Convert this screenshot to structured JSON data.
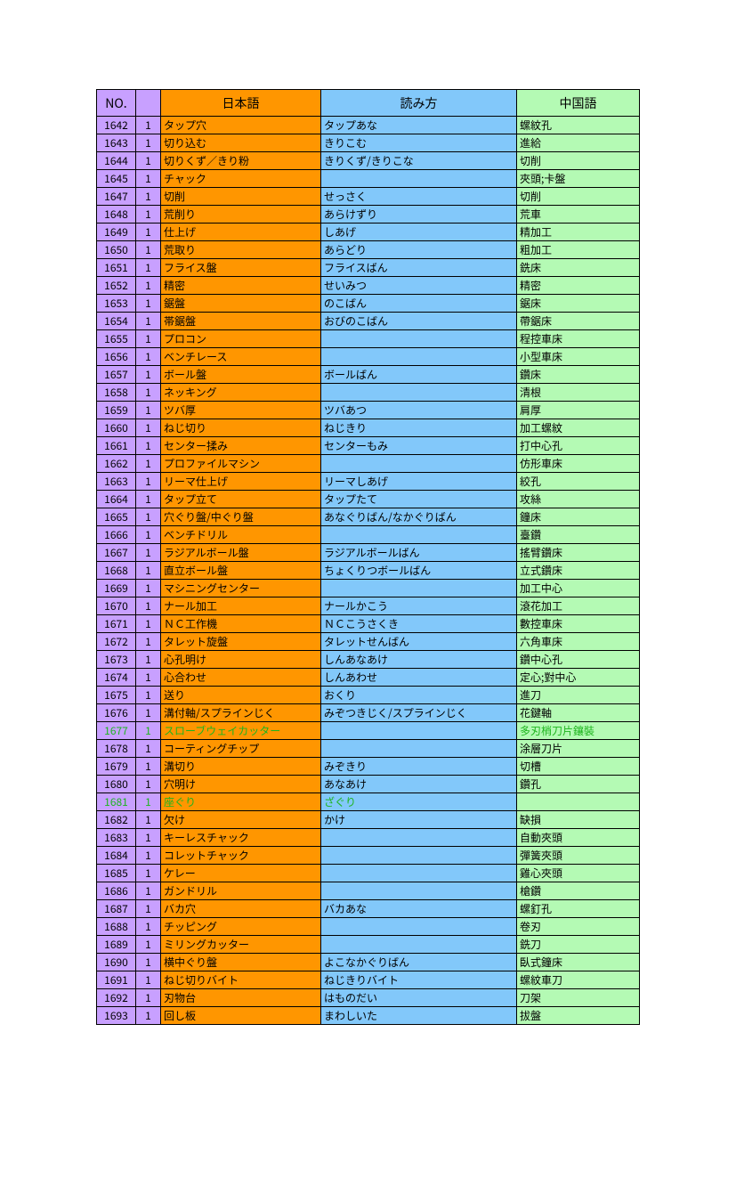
{
  "headers": {
    "no": "NO.",
    "blank": "",
    "jp": "日本語",
    "read": "読み方",
    "cn": "中国語"
  },
  "colors": {
    "purple": "#c8a0ff",
    "orange": "#ff9600",
    "blue": "#82c8fa",
    "green": "#b4fab4",
    "row_text_green": "#1eb41e",
    "border": "#000000",
    "bg": "#ffffff"
  },
  "rows": [
    {
      "no": "1642",
      "b": "1",
      "jp": "タップ穴",
      "read": "タップあな",
      "cn": "螺紋孔"
    },
    {
      "no": "1643",
      "b": "1",
      "jp": "切り込む",
      "read": "きりこむ",
      "cn": "進給"
    },
    {
      "no": "1644",
      "b": "1",
      "jp": "切りくず／きり粉",
      "read": "きりくず/きりこな",
      "cn": "切削"
    },
    {
      "no": "1645",
      "b": "1",
      "jp": "チャック",
      "read": "",
      "cn": "夾頭;卡盤"
    },
    {
      "no": "1647",
      "b": "1",
      "jp": "切削",
      "read": "せっさく",
      "cn": "切削"
    },
    {
      "no": "1648",
      "b": "1",
      "jp": "荒削り",
      "read": "あらけずり",
      "cn": "荒車"
    },
    {
      "no": "1649",
      "b": "1",
      "jp": "仕上げ",
      "read": "しあげ",
      "cn": "精加工"
    },
    {
      "no": "1650",
      "b": "1",
      "jp": "荒取り",
      "read": "あらどり",
      "cn": "粗加工"
    },
    {
      "no": "1651",
      "b": "1",
      "jp": "フライス盤",
      "read": "フライスばん",
      "cn": "銑床"
    },
    {
      "no": "1652",
      "b": "1",
      "jp": "精密",
      "read": "せいみつ",
      "cn": "精密"
    },
    {
      "no": "1653",
      "b": "1",
      "jp": "鋸盤",
      "read": "のこばん",
      "cn": "鋸床"
    },
    {
      "no": "1654",
      "b": "1",
      "jp": "帯鋸盤",
      "read": "おびのこばん",
      "cn": "帶鋸床"
    },
    {
      "no": "1655",
      "b": "1",
      "jp": "プロコン",
      "read": "",
      "cn": "程控車床"
    },
    {
      "no": "1656",
      "b": "1",
      "jp": "ベンチレース",
      "read": "",
      "cn": "小型車床"
    },
    {
      "no": "1657",
      "b": "1",
      "jp": "ボール盤",
      "read": "ボールばん",
      "cn": "鑽床"
    },
    {
      "no": "1658",
      "b": "1",
      "jp": "ネッキング",
      "read": "",
      "cn": "清根"
    },
    {
      "no": "1659",
      "b": "1",
      "jp": "ツバ厚",
      "read": "ツバあつ",
      "cn": "肩厚"
    },
    {
      "no": "1660",
      "b": "1",
      "jp": "ねじ切り",
      "read": "ねじきり",
      "cn": "加工螺紋"
    },
    {
      "no": "1661",
      "b": "1",
      "jp": "センター揉み",
      "read": "センターもみ",
      "cn": "打中心孔"
    },
    {
      "no": "1662",
      "b": "1",
      "jp": "プロファイルマシン",
      "read": "",
      "cn": "仿形車床"
    },
    {
      "no": "1663",
      "b": "1",
      "jp": "リーマ仕上げ",
      "read": "リーマしあげ",
      "cn": "絞孔"
    },
    {
      "no": "1664",
      "b": "1",
      "jp": "タップ立て",
      "read": "タップたて",
      "cn": "攻絲"
    },
    {
      "no": "1665",
      "b": "1",
      "jp": "穴ぐり盤/中ぐり盤",
      "read": "あなぐりばん/なかぐりばん",
      "cn": "鐘床"
    },
    {
      "no": "1666",
      "b": "1",
      "jp": "ベンチドリル",
      "read": "",
      "cn": "臺鑽"
    },
    {
      "no": "1667",
      "b": "1",
      "jp": "ラジアルボール盤",
      "read": "ラジアルボールばん",
      "cn": "搖臂鑽床"
    },
    {
      "no": "1668",
      "b": "1",
      "jp": "直立ボール盤",
      "read": "ちょくりつボールばん",
      "cn": "立式鑽床"
    },
    {
      "no": "1669",
      "b": "1",
      "jp": "マシニングセンター",
      "read": "",
      "cn": "加工中心"
    },
    {
      "no": "1670",
      "b": "1",
      "jp": "ナール加工",
      "read": "ナールかこう",
      "cn": "滾花加工"
    },
    {
      "no": "1671",
      "b": "1",
      "jp": "ＮＣ工作機",
      "read": "ＮＣこうさくき",
      "cn": "數控車床"
    },
    {
      "no": "1672",
      "b": "1",
      "jp": "タレット旋盤",
      "read": "タレットせんばん",
      "cn": "六角車床"
    },
    {
      "no": "1673",
      "b": "1",
      "jp": "心孔明け",
      "read": "しんあなあけ",
      "cn": "鑽中心孔"
    },
    {
      "no": "1674",
      "b": "1",
      "jp": "心合わせ",
      "read": "しんあわせ",
      "cn": "定心;對中心"
    },
    {
      "no": "1675",
      "b": "1",
      "jp": "送り",
      "read": "おくり",
      "cn": "進刀"
    },
    {
      "no": "1676",
      "b": "1",
      "jp": "溝付軸/スプラインじく",
      "read": "みぞつきじく/スプラインじく",
      "cn": "花鍵軸"
    },
    {
      "no": "1677",
      "b": "1",
      "jp": "スローブウェイカッター",
      "read": "",
      "cn": "多刃梢刀片鑲裝",
      "green": true
    },
    {
      "no": "1678",
      "b": "1",
      "jp": "コーティングチップ",
      "read": "",
      "cn": "涂層刀片"
    },
    {
      "no": "1679",
      "b": "1",
      "jp": "溝切り",
      "read": "みぞきり",
      "cn": "切槽"
    },
    {
      "no": "1680",
      "b": "1",
      "jp": "穴明け",
      "read": "あなあけ",
      "cn": "鑽孔"
    },
    {
      "no": "1681",
      "b": "1",
      "jp": "座ぐり",
      "read": "ざぐり",
      "cn": "",
      "green": true
    },
    {
      "no": "1682",
      "b": "1",
      "jp": "欠け",
      "read": "かけ",
      "cn": "缺損"
    },
    {
      "no": "1683",
      "b": "1",
      "jp": "キーレスチャック",
      "read": "",
      "cn": "自動夾頭"
    },
    {
      "no": "1684",
      "b": "1",
      "jp": "コレットチャック",
      "read": "",
      "cn": "彈簧夾頭"
    },
    {
      "no": "1685",
      "b": "1",
      "jp": "ケレー",
      "read": "",
      "cn": "雞心夾頭"
    },
    {
      "no": "1686",
      "b": "1",
      "jp": "ガンドリル",
      "read": "",
      "cn": "槍鑽"
    },
    {
      "no": "1687",
      "b": "1",
      "jp": "バカ穴",
      "read": "バカあな",
      "cn": "螺釘孔"
    },
    {
      "no": "1688",
      "b": "1",
      "jp": "チッピング",
      "read": "",
      "cn": "卷刃"
    },
    {
      "no": "1689",
      "b": "1",
      "jp": "ミリングカッター",
      "read": "",
      "cn": "銑刀"
    },
    {
      "no": "1690",
      "b": "1",
      "jp": "横中ぐり盤",
      "read": "よこなかぐりばん",
      "cn": "臥式鐘床"
    },
    {
      "no": "1691",
      "b": "1",
      "jp": "ねじ切りバイト",
      "read": "ねじきりバイト",
      "cn": "螺紋車刀"
    },
    {
      "no": "1692",
      "b": "1",
      "jp": "刃物台",
      "read": "はものだい",
      "cn": "刀架"
    },
    {
      "no": "1693",
      "b": "1",
      "jp": "回し板",
      "read": "まわしいた",
      "cn": "拔盤"
    }
  ]
}
